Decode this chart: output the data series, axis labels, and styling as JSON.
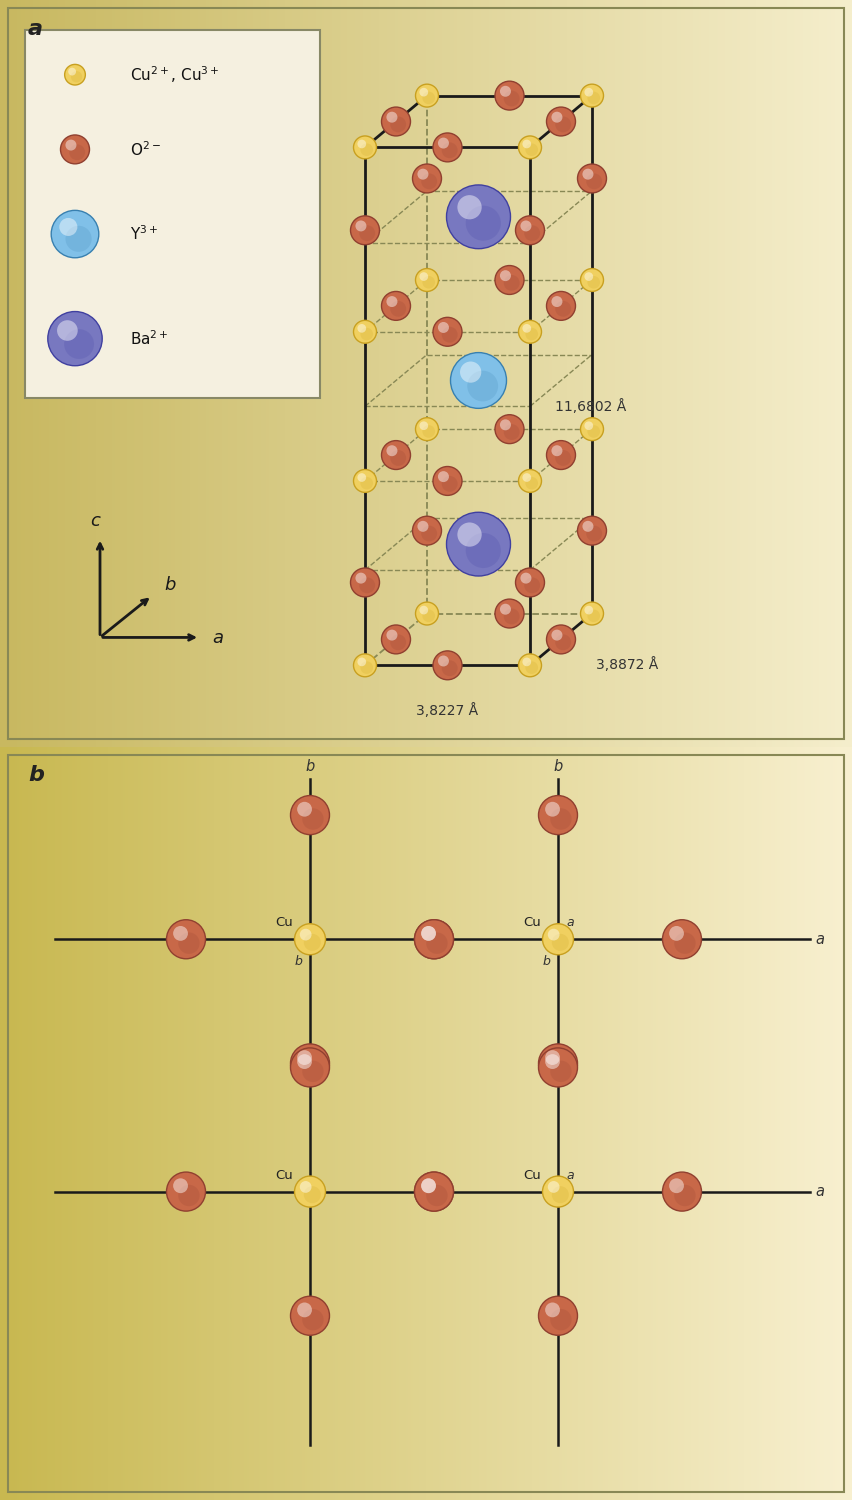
{
  "cu_color": "#f0d060",
  "cu_edge": "#c8a020",
  "o_color": "#c86848",
  "o_edge": "#904030",
  "y_color": "#80c0e8",
  "y_edge": "#3880b0",
  "ba_color": "#7878c0",
  "ba_edge": "#4040a0",
  "line_color": "#1a1a1a",
  "dashed_color": "#888855",
  "dim_a": "3,8227 Å",
  "dim_b": "3,8872 Å",
  "dim_c": "11,6802 Å",
  "bg_color_a_tl": "#ddd090",
  "bg_color_a_tr": "#e8d898",
  "bg_color_a_bl": "#f0e8b0",
  "bg_color_a_br": "#e0d090",
  "bg_color_b_tl": "#e8d890",
  "bg_color_b_br": "#f8f0d0"
}
